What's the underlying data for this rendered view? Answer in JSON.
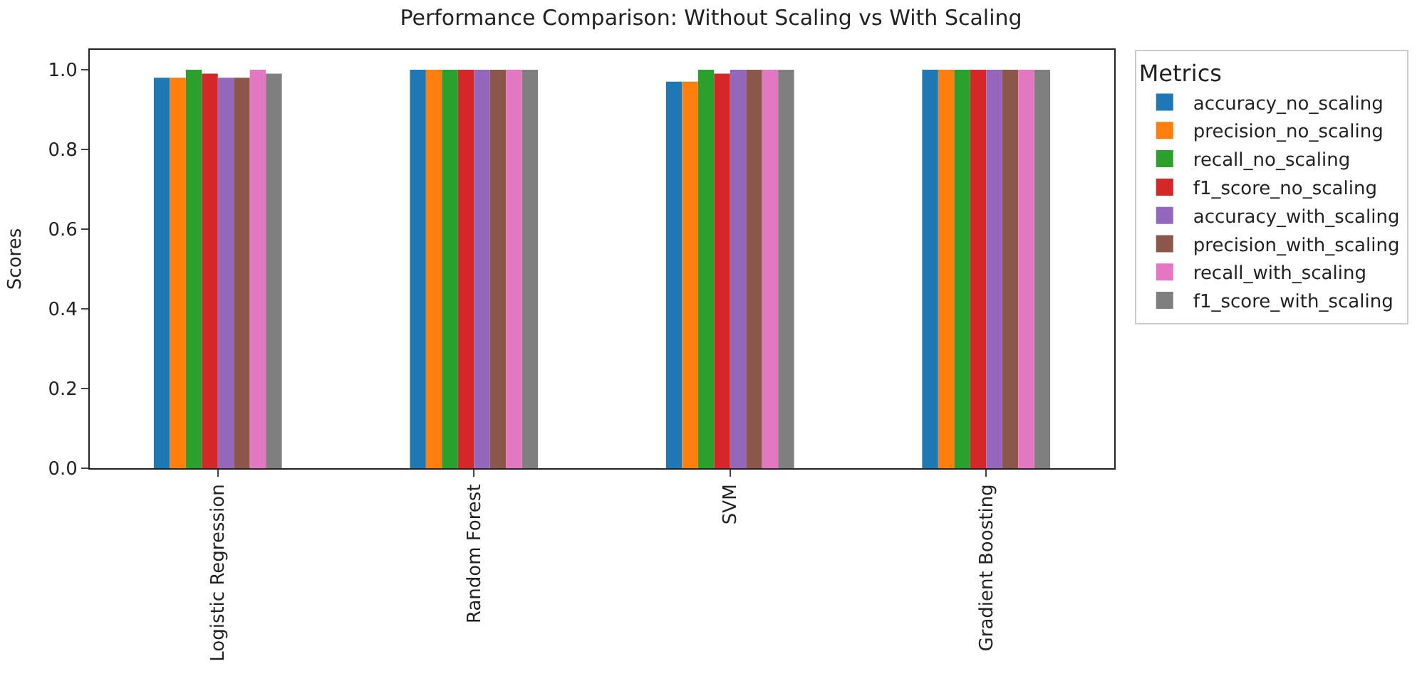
{
  "chart_data": {
    "type": "bar",
    "title": "Performance Comparison: Without Scaling vs With Scaling",
    "ylabel": "Scores",
    "legend_title": "Metrics",
    "categories": [
      "Logistic Regression",
      "Random Forest",
      "SVM",
      "Gradient Boosting"
    ],
    "series": [
      {
        "name": "accuracy_no_scaling",
        "color": "#1f77b4",
        "values": [
          0.98,
          1.0,
          0.97,
          1.0
        ]
      },
      {
        "name": "precision_no_scaling",
        "color": "#ff7f0e",
        "values": [
          0.98,
          1.0,
          0.97,
          1.0
        ]
      },
      {
        "name": "recall_no_scaling",
        "color": "#2ca02c",
        "values": [
          1.0,
          1.0,
          1.0,
          1.0
        ]
      },
      {
        "name": "f1_score_no_scaling",
        "color": "#d62728",
        "values": [
          0.99,
          1.0,
          0.99,
          1.0
        ]
      },
      {
        "name": "accuracy_with_scaling",
        "color": "#9467bd",
        "values": [
          0.98,
          1.0,
          1.0,
          1.0
        ]
      },
      {
        "name": "precision_with_scaling",
        "color": "#8c564b",
        "values": [
          0.98,
          1.0,
          1.0,
          1.0
        ]
      },
      {
        "name": "recall_with_scaling",
        "color": "#e377c2",
        "values": [
          1.0,
          1.0,
          1.0,
          1.0
        ]
      },
      {
        "name": "f1_score_with_scaling",
        "color": "#7f7f7f",
        "values": [
          0.99,
          1.0,
          1.0,
          1.0
        ]
      }
    ],
    "ylim": [
      0,
      1.05
    ],
    "yticks": [
      {
        "value": 0,
        "label": "0.0"
      },
      {
        "value": 0.2,
        "label": "0.2"
      },
      {
        "value": 0.4,
        "label": "0.4"
      },
      {
        "value": 0.6,
        "label": "0.6"
      },
      {
        "value": 0.8,
        "label": "0.8"
      },
      {
        "value": 1.0,
        "label": "1.0"
      }
    ],
    "grid": false,
    "legend": "right"
  }
}
